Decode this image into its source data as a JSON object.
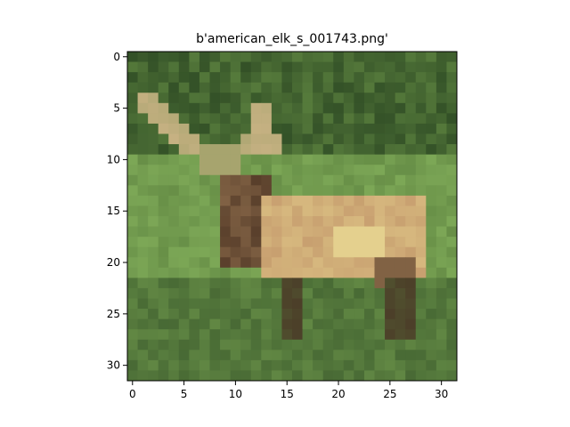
{
  "figure": {
    "title": "b'american_elk_s_001743.png'"
  },
  "image": {
    "rows": 32,
    "cols": 32,
    "palette": {
      "background_green": "#5e8440",
      "dark_forest": "#25401f",
      "light_grass": "#84b05c",
      "elk_body": "#c8a070",
      "elk_highlight": "#e0c888",
      "elk_neck": "#3a2418",
      "antler": "#c6b182",
      "legs": "#4b3c28"
    }
  },
  "axes": {
    "x_ticks": [
      "0",
      "5",
      "10",
      "15",
      "20",
      "25",
      "30"
    ],
    "y_ticks": [
      "0",
      "5",
      "10",
      "15",
      "20",
      "25",
      "30"
    ],
    "x_tick_values": [
      0,
      5,
      10,
      15,
      20,
      25,
      30
    ],
    "y_tick_values": [
      0,
      5,
      10,
      15,
      20,
      25,
      30
    ]
  }
}
